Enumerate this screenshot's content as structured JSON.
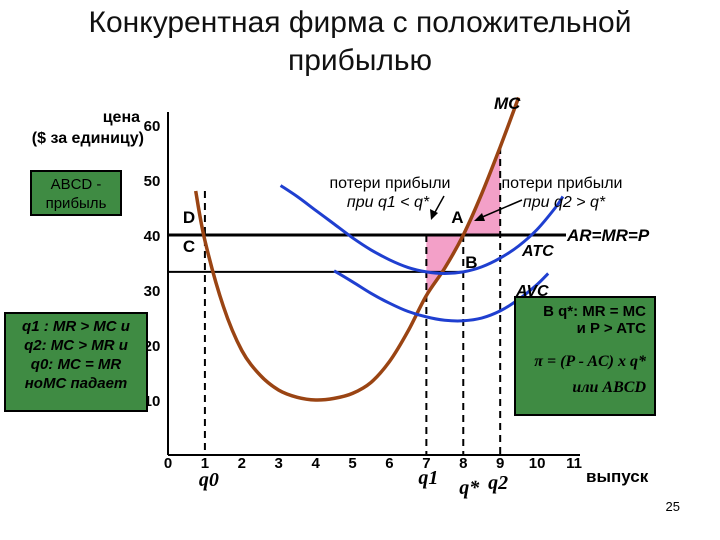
{
  "title_line1": "Конкурентная фирма с положительной",
  "title_line2": "прибылью",
  "page_number": "25",
  "colors": {
    "mc": "#9a4413",
    "atc": "#1f3fd0",
    "avc": "#1f3fd0",
    "price_line": "#000000",
    "loss_fill": "#f3a0c8",
    "box_fill": "#3f8b43"
  },
  "boxes": {
    "abcd_profit": [
      "ABCD -",
      "прибыль"
    ],
    "conditions": [
      "q1 : MR > MC и",
      "q2: MC > MR и",
      "q0: MC = MR",
      "ноMC падает"
    ],
    "optimum": {
      "line1": "В q*: MR = MC",
      "line2": "и P > ATC",
      "formula": "π = (P - AC) x q*",
      "formula_alt": "или ABCD"
    }
  },
  "chart_data": {
    "type": "line",
    "ylabel_line1": "цена",
    "ylabel_line2": "($ за единицу)",
    "xlabel": "выпуск",
    "xlim": [
      0,
      11
    ],
    "ylim": [
      0,
      60
    ],
    "x_ticks": [
      "0",
      "1",
      "2",
      "3",
      "4",
      "5",
      "6",
      "7",
      "8",
      "9",
      "10",
      "11"
    ],
    "y_ticks": [
      "10",
      "20",
      "30",
      "40",
      "50",
      "60"
    ],
    "price": 40,
    "series": [
      {
        "name": "MC",
        "x": [
          0.75,
          1.0,
          1.5,
          2.0,
          2.5,
          3.0,
          3.5,
          4.0,
          4.5,
          5.0,
          5.5,
          6.0,
          6.5,
          7.0,
          7.5,
          8.0,
          8.5,
          9.0,
          9.5
        ],
        "y": [
          48,
          39,
          27,
          19,
          14.5,
          11.8,
          10.5,
          10,
          10.3,
          11.2,
          13.2,
          17,
          22.5,
          29,
          34,
          40,
          47.5,
          56,
          65
        ]
      },
      {
        "name": "ATC",
        "x": [
          3.05,
          3.5,
          4.0,
          4.5,
          5.0,
          5.5,
          6.0,
          6.5,
          7.0,
          7.5,
          8.0,
          8.5,
          9.0,
          9.5,
          10.0,
          10.5,
          10.7
        ],
        "y": [
          49,
          47,
          44.5,
          42,
          39.5,
          37.3,
          35.5,
          34.1,
          33.3,
          33.0,
          33.3,
          34.2,
          35.8,
          38.0,
          41.0,
          45.0,
          47.0
        ]
      },
      {
        "name": "AVC",
        "x": [
          4.5,
          5.0,
          5.5,
          6.0,
          6.5,
          7.0,
          7.5,
          8.0,
          8.5,
          9.0,
          9.5,
          10.0,
          10.3
        ],
        "y": [
          33.5,
          31.5,
          29.4,
          27.6,
          26.1,
          25.1,
          24.5,
          24.4,
          24.9,
          26.2,
          28.3,
          31.0,
          33.0
        ]
      }
    ],
    "q0": 1,
    "q1": 7,
    "q_star": 8,
    "q2": 9,
    "q1_label": "q1",
    "q_star_label": "q*",
    "q2_label": "q2",
    "q0_label": "q0",
    "point_labels": {
      "A": {
        "label": "A",
        "x": 8,
        "y": 40
      },
      "B": {
        "label": "B",
        "x": 8,
        "y": 33.3
      },
      "C": {
        "label": "C",
        "x": 1,
        "y": 33.3
      },
      "D": {
        "label": "D",
        "x": 1,
        "y": 40
      }
    },
    "curve_labels": {
      "mc": "MC",
      "atc": "ATC",
      "avc": "AVC",
      "price": "AR=MR=P"
    },
    "annotations": {
      "loss1": [
        "потери прибыли",
        "при q1 < q*"
      ],
      "loss2": [
        "потери прибыли",
        "при q2 > q*"
      ]
    }
  }
}
